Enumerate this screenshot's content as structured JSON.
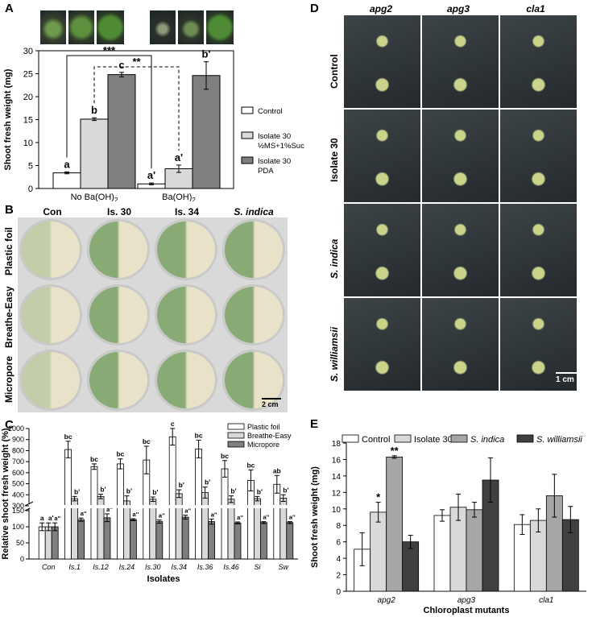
{
  "panels": {
    "A": {
      "label": "A"
    },
    "B": {
      "label": "B"
    },
    "C": {
      "label": "C"
    },
    "D": {
      "label": "D"
    },
    "E": {
      "label": "E"
    }
  },
  "panel_B": {
    "columns": [
      "Con",
      "Is. 30",
      "Is. 34",
      "S. indica"
    ],
    "rows": [
      "Plastic foil",
      "Breathe-Easy",
      "Micropore"
    ],
    "scale": "2 cm"
  },
  "panel_D": {
    "columns": [
      "apg2",
      "apg3",
      "cla1"
    ],
    "rows": [
      "Control",
      "Isolate 30",
      "S. indica",
      "S. williamsii"
    ],
    "scale": "1 cm"
  },
  "chart_data": [
    {
      "id": "A",
      "type": "bar",
      "ylabel": "Shoot fresh weight (mg)",
      "ylim": [
        0,
        30
      ],
      "yticks": [
        0,
        5,
        10,
        15,
        20,
        25,
        30
      ],
      "categories": [
        "No Ba(OH)2",
        "Ba(OH)2"
      ],
      "category_labels": [
        {
          "main": "No Ba(OH)",
          "sub": "2"
        },
        {
          "main": "Ba(OH)",
          "sub": "2"
        }
      ],
      "series": [
        {
          "name": "Control",
          "color": "#ffffff",
          "values": [
            3.4,
            1.0
          ],
          "errors": [
            0.2,
            0.2
          ],
          "letters": [
            "a",
            "a'"
          ]
        },
        {
          "name": "Isolate 30 ½MS+1%Suc",
          "legend_lines": [
            "Isolate 30",
            "½MS+1%Suc"
          ],
          "color": "#d9d9d9",
          "values": [
            15.1,
            4.3
          ],
          "errors": [
            0.3,
            0.8
          ],
          "letters": [
            "b",
            "a'"
          ]
        },
        {
          "name": "Isolate 30 PDA",
          "legend_lines": [
            "Isolate 30",
            "PDA"
          ],
          "color": "#7f7f7f",
          "values": [
            24.8,
            24.6
          ],
          "errors": [
            0.5,
            3.0
          ],
          "letters": [
            "c",
            "b'"
          ]
        }
      ],
      "annotations": [
        {
          "text": "***",
          "style": "solid"
        },
        {
          "text": "**",
          "style": "dashed"
        }
      ]
    },
    {
      "id": "C",
      "type": "bar",
      "ylabel": "Relative shoot fresh weight (%)",
      "xlabel": "Isolates",
      "axis_break": true,
      "yticks_lower": [
        0,
        50,
        100,
        150
      ],
      "yticks_upper": [
        300,
        400,
        500,
        600,
        700,
        800,
        900,
        1000
      ],
      "categories": [
        "Con",
        "Is.1",
        "Is.12",
        "Is.24",
        "Is.30",
        "Is.34",
        "Is.36",
        "Is.46",
        "Si",
        "Sw"
      ],
      "series": [
        {
          "name": "Plastic foil",
          "color": "#ffffff",
          "values": [
            100,
            810,
            655,
            680,
            715,
            925,
            815,
            635,
            530,
            495
          ],
          "errors": [
            12,
            75,
            25,
            45,
            125,
            75,
            80,
            75,
            95,
            80
          ],
          "letters": [
            "a",
            "bc",
            "bc",
            "bc",
            "bc",
            "c",
            "bc",
            "bc",
            "bc",
            "ab"
          ]
        },
        {
          "name": "Breathe-Easy",
          "color": "#d9d9d9",
          "values": [
            100,
            365,
            385,
            345,
            360,
            410,
            420,
            360,
            365,
            370
          ],
          "errors": [
            12,
            20,
            20,
            45,
            20,
            35,
            50,
            30,
            20,
            30
          ],
          "letters": [
            "a'",
            "b'",
            "b'",
            "b'",
            "b'",
            "b'",
            "b'",
            "b'",
            "b'",
            "b'"
          ]
        },
        {
          "name": "Micropore",
          "color": "#7f7f7f",
          "values": [
            100,
            122,
            128,
            122,
            116,
            130,
            116,
            112,
            113,
            113
          ],
          "errors": [
            12,
            5,
            12,
            3,
            5,
            6,
            8,
            3,
            3,
            3
          ],
          "letters": [
            "a''",
            "a''",
            "a''",
            "a''",
            "a''",
            "a''",
            "a''",
            "a''",
            "a''",
            "a''"
          ]
        }
      ]
    },
    {
      "id": "E",
      "type": "bar",
      "ylabel": "Shoot fresh weight (mg)",
      "xlabel": "Chloroplast mutants",
      "ylim": [
        0,
        18
      ],
      "yticks": [
        0,
        2,
        4,
        6,
        8,
        10,
        12,
        14,
        16,
        18
      ],
      "categories": [
        "apg2",
        "apg3",
        "cla1"
      ],
      "series": [
        {
          "name": "Control",
          "color": "#ffffff",
          "values": [
            5.1,
            9.2,
            8.1
          ],
          "errors": [
            2.0,
            0.7,
            1.2
          ],
          "marks": [
            "",
            "",
            ""
          ]
        },
        {
          "name": "Isolate 30",
          "color": "#d9d9d9",
          "values": [
            9.6,
            10.2,
            8.6
          ],
          "errors": [
            1.2,
            1.6,
            1.4
          ],
          "marks": [
            "*",
            "",
            ""
          ]
        },
        {
          "name": "S. indica",
          "color": "#a6a6a6",
          "values": [
            16.3,
            9.9,
            11.6
          ],
          "errors": [
            0.15,
            0.9,
            2.6
          ],
          "marks": [
            "**",
            "",
            ""
          ]
        },
        {
          "name": "S. williamsii",
          "color": "#404040",
          "values": [
            6.0,
            13.5,
            8.7
          ],
          "errors": [
            0.8,
            2.7,
            1.6
          ],
          "marks": [
            "",
            "",
            ""
          ]
        }
      ]
    }
  ]
}
